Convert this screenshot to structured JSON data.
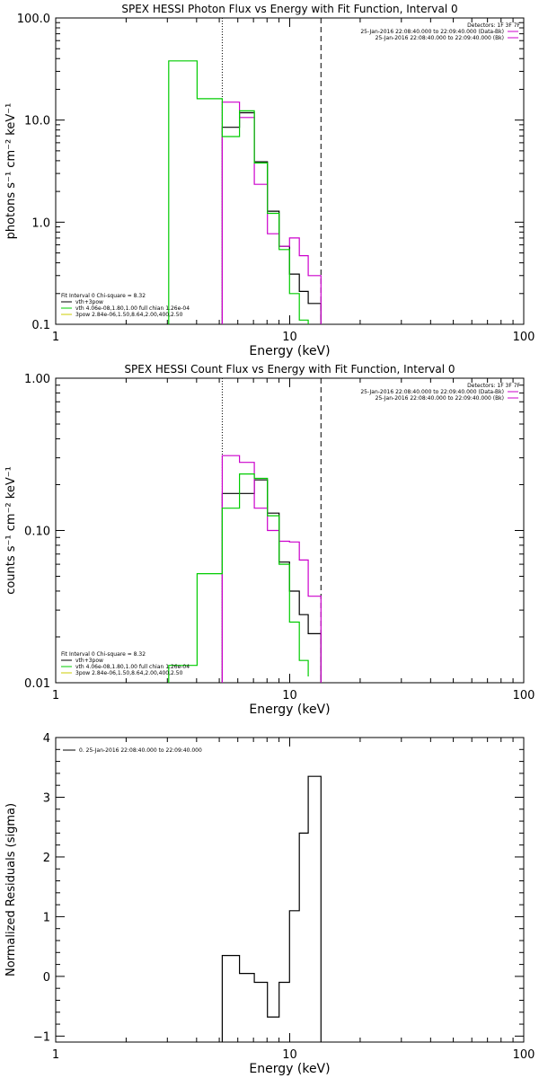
{
  "colors": {
    "axis": "#000000",
    "background": "#ffffff",
    "total": "#000000",
    "data": "#cc00cc",
    "thermal": "#00cc00",
    "powerlaw": "#cccc00"
  },
  "chart_data": [
    {
      "type": "line",
      "title": "SPEX HESSI Photon Flux vs Energy with Fit Function, Interval 0",
      "xlabel": "Energy (keV)",
      "ylabel": "photons s⁻¹ cm⁻² keV⁻¹",
      "xscale": "log",
      "yscale": "log",
      "xlim": [
        1,
        100
      ],
      "ylim": [
        0.1,
        100
      ],
      "x_ticks": [
        {
          "v": 1,
          "label": "1"
        },
        {
          "v": 10,
          "label": "10"
        },
        {
          "v": 100,
          "label": "100"
        }
      ],
      "y_ticks": [
        {
          "v": 0.1,
          "label": "0.1"
        },
        {
          "v": 1,
          "label": "1.0"
        },
        {
          "v": 10,
          "label": "10.0"
        },
        {
          "v": 100,
          "label": "100.0"
        }
      ],
      "vlines": [
        {
          "x": 5.15,
          "style": "dotted"
        },
        {
          "x": 13.6,
          "style": "dashed"
        }
      ],
      "info": [
        "Detectors: 1F 3F 7F",
        "25-Jan-2016 22:08:40.000 to 22:09:40.000 (Data-Bk)",
        "25-Jan-2016 22:08:40.000 to 22:09:40.000 (Bk)"
      ],
      "info_swatch": [
        false,
        true,
        true
      ],
      "fit_legend": [
        "Fit Interval 0   Chi-square = 8.32",
        "vth+3pow",
        "vth 4.06e-08,1.80,1.00   full chian 1.26e-04",
        "3pow 2.84e-06,1.50,8.64,2.00,400,2.50"
      ],
      "series": [
        {
          "name": "",
          "role": "total",
          "edges": [
            5.15,
            6.1,
            7.06,
            8.03,
            9.01,
            9.98,
            10.99,
            12.0,
            13.6
          ],
          "values": [
            8.5,
            11.8,
            3.9,
            1.28,
            0.58,
            0.31,
            0.21,
            0.16
          ]
        },
        {
          "name": "",
          "role": "data",
          "edges": [
            5.15,
            6.1,
            7.06,
            8.03,
            9.01,
            9.98,
            10.99,
            12.0,
            13.6
          ],
          "values": [
            15.0,
            10.6,
            2.35,
            0.77,
            0.58,
            0.7,
            0.47,
            0.3
          ]
        },
        {
          "name": "",
          "role": "thermal",
          "edges": [
            3.04,
            4.02,
            5.15,
            6.1,
            7.06,
            8.03,
            9.01,
            9.98,
            10.99,
            12.0
          ],
          "values": [
            38.0,
            16.2,
            6.9,
            12.3,
            3.8,
            1.22,
            0.54,
            0.2,
            0.11,
            0.1
          ]
        }
      ]
    },
    {
      "type": "line",
      "title": "SPEX HESSI Count Flux vs Energy with Fit Function, Interval 0",
      "xlabel": "Energy (keV)",
      "ylabel": "counts s⁻¹ cm⁻² keV⁻¹",
      "xscale": "log",
      "yscale": "log",
      "xlim": [
        1,
        100
      ],
      "ylim": [
        0.01,
        1
      ],
      "x_ticks": [
        {
          "v": 1,
          "label": "1"
        },
        {
          "v": 10,
          "label": "10"
        },
        {
          "v": 100,
          "label": "100"
        }
      ],
      "y_ticks": [
        {
          "v": 0.01,
          "label": "0.01"
        },
        {
          "v": 0.1,
          "label": "0.10"
        },
        {
          "v": 1,
          "label": "1.00"
        }
      ],
      "vlines": [
        {
          "x": 5.15,
          "style": "dotted"
        },
        {
          "x": 13.6,
          "style": "dashed"
        }
      ],
      "info": [
        "Detectors: 1F 3F 7F",
        "25-Jan-2016 22:08:40.000 to 22:09:40.000 (Data-Bk)",
        "25-Jan-2016 22:08:40.000 to 22:09:40.000 (Bk)"
      ],
      "info_swatch": [
        false,
        true,
        true
      ],
      "fit_legend": [
        "Fit Interval 0   Chi-square = 8.32",
        "vth+3pow",
        "vth 4.06e-08,1.80,1.00   full chian 1.26e-04",
        "3pow 2.84e-06,1.50,8.64,2.00,400,2.50"
      ],
      "series": [
        {
          "name": "",
          "role": "total",
          "edges": [
            5.15,
            6.1,
            7.06,
            8.03,
            9.01,
            9.98,
            10.99,
            12.0,
            13.6
          ],
          "values": [
            0.175,
            0.175,
            0.215,
            0.13,
            0.062,
            0.04,
            0.028,
            0.021
          ]
        },
        {
          "name": "",
          "role": "data",
          "edges": [
            5.15,
            6.1,
            7.06,
            8.03,
            9.01,
            9.98,
            10.99,
            12.0,
            13.6
          ],
          "values": [
            0.31,
            0.28,
            0.14,
            0.1,
            0.085,
            0.084,
            0.064,
            0.037
          ]
        },
        {
          "name": "",
          "role": "thermal",
          "edges": [
            3.04,
            4.02,
            5.15,
            6.1,
            7.06,
            8.03,
            9.01,
            9.98,
            10.99,
            12.0
          ],
          "values": [
            0.013,
            0.052,
            0.14,
            0.235,
            0.22,
            0.125,
            0.06,
            0.025,
            0.014,
            0.011
          ]
        }
      ]
    },
    {
      "type": "line",
      "title": "",
      "xlabel": "Energy (keV)",
      "ylabel": "Normalized Residuals (sigma)",
      "xscale": "log",
      "yscale": "linear",
      "xlim": [
        1,
        100
      ],
      "ylim": [
        -1.1,
        4.0
      ],
      "x_ticks": [
        {
          "v": 1,
          "label": "1"
        },
        {
          "v": 10,
          "label": "10"
        },
        {
          "v": 100,
          "label": "100"
        }
      ],
      "y_ticks": [
        {
          "v": -1,
          "label": "−1"
        },
        {
          "v": 0,
          "label": "0"
        },
        {
          "v": 1,
          "label": "1"
        },
        {
          "v": 2,
          "label": "2"
        },
        {
          "v": 3,
          "label": "3"
        },
        {
          "v": 4,
          "label": "4"
        }
      ],
      "vlines": [],
      "info": [
        "0. 25-Jan-2016 22:08:40.000 to 22:09:40.000"
      ],
      "info_swatch": [
        true
      ],
      "fit_legend": [],
      "series": [
        {
          "name": "",
          "role": "total",
          "edges": [
            5.15,
            6.1,
            7.06,
            8.03,
            9.01,
            9.98,
            10.99,
            12.0,
            13.6
          ],
          "values": [
            0.35,
            0.05,
            -0.1,
            -0.68,
            -0.1,
            1.1,
            2.4,
            3.35
          ]
        }
      ]
    }
  ]
}
